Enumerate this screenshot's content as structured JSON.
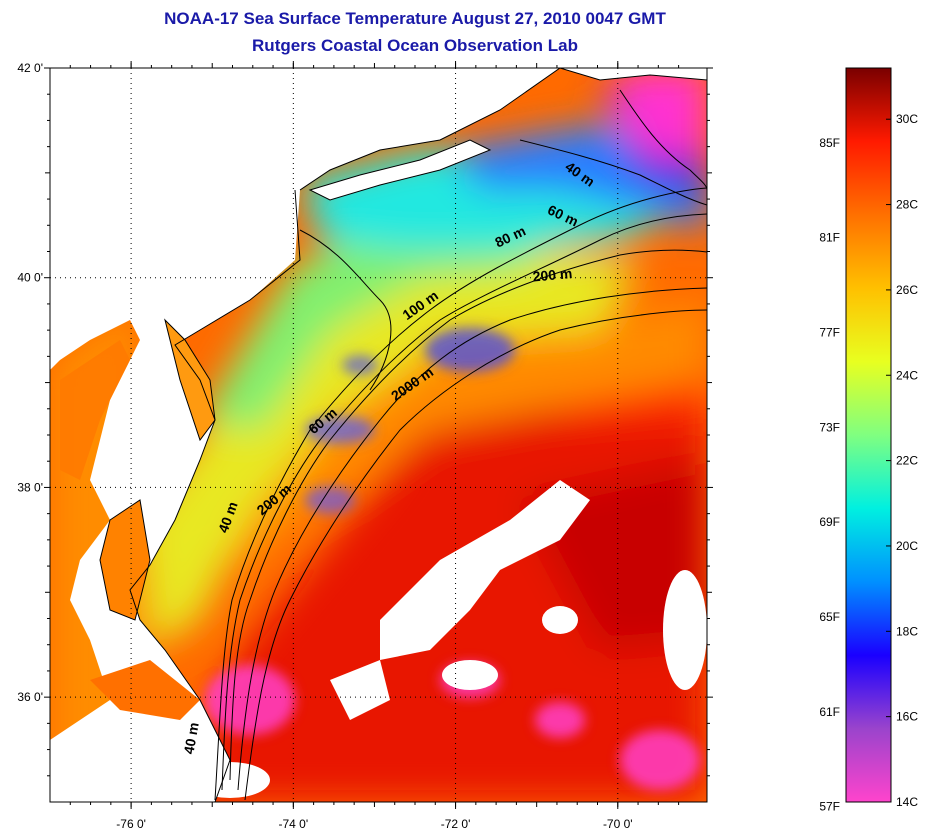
{
  "title_line1": "NOAA-17 Sea Surface Temperature August 27, 2010 0047 GMT",
  "title_line2": "Rutgers Coastal Ocean Observation Lab",
  "map": {
    "lon_range": [
      -77.0,
      -68.9
    ],
    "lat_range": [
      35.0,
      42.0
    ],
    "lat_ticks": [
      {
        "value": 42,
        "label": "42 0'"
      },
      {
        "value": 40,
        "label": "40 0'"
      },
      {
        "value": 38,
        "label": "38 0'"
      },
      {
        "value": 36,
        "label": "36 0'"
      }
    ],
    "lon_ticks": [
      {
        "value": -76,
        "label": "-76 0'"
      },
      {
        "value": -74,
        "label": "-74 0'"
      },
      {
        "value": -72,
        "label": "-72 0'"
      },
      {
        "value": -70,
        "label": "-70 0'"
      }
    ],
    "depth_labels": [
      {
        "text": "40 m",
        "lon": -70.5,
        "lat": 40.95,
        "angle": 35
      },
      {
        "text": "60 m",
        "lon": -70.7,
        "lat": 40.55,
        "angle": 25
      },
      {
        "text": "80 m",
        "lon": -71.3,
        "lat": 40.35,
        "angle": -25
      },
      {
        "text": "200 m",
        "lon": -70.8,
        "lat": 39.98,
        "angle": -5
      },
      {
        "text": "100 m",
        "lon": -72.4,
        "lat": 39.7,
        "angle": -35
      },
      {
        "text": "2000 m",
        "lon": -72.5,
        "lat": 38.95,
        "angle": -35
      },
      {
        "text": "60 m",
        "lon": -73.6,
        "lat": 38.6,
        "angle": -40
      },
      {
        "text": "200 m",
        "lon": -74.2,
        "lat": 37.85,
        "angle": -40
      },
      {
        "text": "40 m",
        "lon": -74.75,
        "lat": 37.7,
        "angle": -70
      },
      {
        "text": "40 m",
        "lon": -75.2,
        "lat": 35.6,
        "angle": -80
      }
    ]
  },
  "colorbar": {
    "stops": [
      "#ff44cc",
      "#9a44cc",
      "#1a00ff",
      "#0090ff",
      "#00f0e0",
      "#80ff80",
      "#e8ff20",
      "#ffc000",
      "#ff7000",
      "#ff1a00",
      "#7a0000"
    ],
    "fahrenheit_labels": [
      {
        "value": 57,
        "label": "57F"
      },
      {
        "value": 61,
        "label": "61F"
      },
      {
        "value": 65,
        "label": "65F"
      },
      {
        "value": 69,
        "label": "69F"
      },
      {
        "value": 73,
        "label": "73F"
      },
      {
        "value": 77,
        "label": "77F"
      },
      {
        "value": 81,
        "label": "81F"
      },
      {
        "value": 85,
        "label": "85F"
      }
    ],
    "celsius_labels": [
      {
        "value": 14,
        "label": "14C"
      },
      {
        "value": 16,
        "label": "16C"
      },
      {
        "value": 18,
        "label": "18C"
      },
      {
        "value": 20,
        "label": "20C"
      },
      {
        "value": 22,
        "label": "22C"
      },
      {
        "value": 24,
        "label": "24C"
      },
      {
        "value": 26,
        "label": "26C"
      },
      {
        "value": 28,
        "label": "28C"
      },
      {
        "value": 30,
        "label": "30C"
      }
    ],
    "range_c": [
      14,
      31.2
    ]
  },
  "colors": {
    "title": "#1a1aa8",
    "land": "#ffffff",
    "cloud": "#ffffff"
  }
}
